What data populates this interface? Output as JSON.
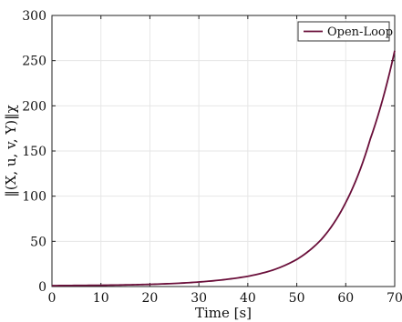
{
  "chart_data": {
    "type": "line",
    "title": "",
    "xlabel": "Time [s]",
    "ylabel": "‖(X, u, v, Y)‖χ",
    "xlim": [
      0,
      70
    ],
    "ylim": [
      0,
      300
    ],
    "xticks": [
      "0",
      "10",
      "20",
      "30",
      "40",
      "50",
      "60",
      "70"
    ],
    "yticks": [
      "0",
      "50",
      "100",
      "150",
      "200",
      "250",
      "300"
    ],
    "grid": true,
    "legend_position": "top-right",
    "series": [
      {
        "name": "Open-Loop",
        "color": "#6a0f3a",
        "x": [
          0,
          5,
          10,
          15,
          20,
          25,
          30,
          35,
          40,
          45,
          50,
          55,
          60,
          65,
          70
        ],
        "y": [
          1.0,
          1.2,
          1.4,
          1.8,
          2.4,
          3.4,
          5.0,
          7.5,
          11.3,
          18.0,
          30.0,
          52.0,
          93.0,
          163.0,
          261.0
        ]
      }
    ]
  }
}
